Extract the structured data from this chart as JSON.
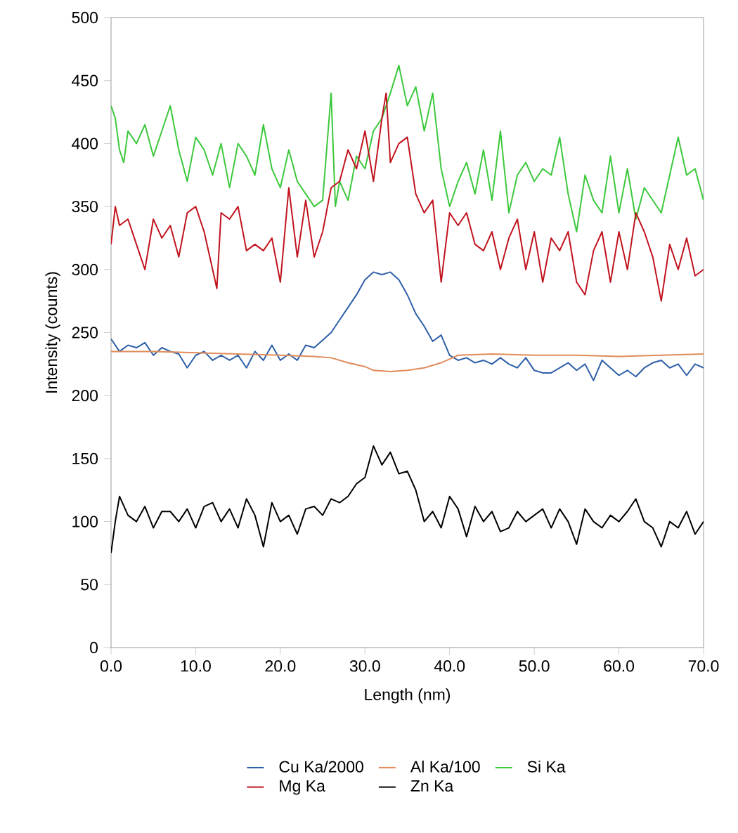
{
  "chart_data": {
    "type": "line",
    "xlabel": "Length (nm)",
    "ylabel": "Intensity (counts)",
    "xlim": [
      0,
      70
    ],
    "ylim": [
      0,
      500
    ],
    "xticks": [
      {
        "value": 0,
        "label": "0.0"
      },
      {
        "value": 10,
        "label": "10.0"
      },
      {
        "value": 20,
        "label": "20.0"
      },
      {
        "value": 30,
        "label": "30.0"
      },
      {
        "value": 40,
        "label": "40.0"
      },
      {
        "value": 50,
        "label": "50.0"
      },
      {
        "value": 60,
        "label": "60.0"
      },
      {
        "value": 70,
        "label": "70.0"
      }
    ],
    "yticks": [
      0,
      50,
      100,
      150,
      200,
      250,
      300,
      350,
      400,
      450,
      500
    ],
    "grid": false,
    "legend": "bottom",
    "marker": "none",
    "line_style": "solid",
    "series": [
      {
        "name": "Cu Ka/2000",
        "color": "#2e5fa8",
        "x": [
          0,
          1,
          2,
          3,
          4,
          5,
          6,
          7,
          8,
          9,
          10,
          11,
          12,
          13,
          14,
          15,
          16,
          17,
          18,
          19,
          20,
          21,
          22,
          23,
          24,
          25,
          26,
          27,
          28,
          29,
          30,
          31,
          32,
          33,
          34,
          35,
          36,
          37,
          38,
          39,
          40,
          41,
          42,
          43,
          44,
          45,
          46,
          47,
          48,
          49,
          50,
          51,
          52,
          53,
          54,
          55,
          56,
          57,
          58,
          59,
          60,
          61,
          62,
          63,
          64,
          65,
          66,
          67,
          68,
          69,
          70
        ],
        "values": [
          245,
          235,
          240,
          238,
          242,
          232,
          238,
          235,
          233,
          222,
          232,
          235,
          228,
          232,
          228,
          232,
          222,
          235,
          228,
          240,
          228,
          233,
          228,
          240,
          238,
          244,
          250,
          260,
          270,
          280,
          292,
          298,
          296,
          298,
          292,
          280,
          265,
          255,
          243,
          248,
          232,
          228,
          230,
          226,
          228,
          225,
          230,
          225,
          222,
          230,
          220,
          218,
          218,
          222,
          226,
          220,
          225,
          212,
          228,
          222,
          216,
          220,
          215,
          222,
          226,
          228,
          222,
          225,
          216,
          225,
          222
        ]
      },
      {
        "name": "Al Ka/100",
        "color": "#e08c5a",
        "x": [
          0,
          5,
          10,
          15,
          20,
          24,
          26,
          28,
          30,
          31,
          33,
          35,
          37,
          39,
          41,
          45,
          50,
          55,
          60,
          65,
          70
        ],
        "values": [
          235,
          235,
          234,
          233,
          232,
          231,
          230,
          226,
          223,
          220,
          219,
          220,
          222,
          226,
          232,
          233,
          232,
          232,
          231,
          232,
          233
        ]
      },
      {
        "name": "Si Ka",
        "color": "#3cc83c",
        "x": [
          0,
          0.5,
          1,
          1.5,
          2,
          3,
          4,
          5,
          6,
          7,
          8,
          9,
          10,
          11,
          12,
          13,
          14,
          15,
          16,
          17,
          18,
          19,
          20,
          21,
          22,
          23,
          24,
          25,
          26,
          26.5,
          27,
          28,
          29,
          30,
          31,
          32,
          33,
          34,
          35,
          36,
          37,
          38,
          39,
          40,
          41,
          42,
          43,
          44,
          45,
          46,
          47,
          48,
          49,
          50,
          51,
          52,
          53,
          54,
          55,
          56,
          57,
          58,
          59,
          60,
          61,
          62,
          63,
          64,
          65,
          66,
          67,
          68,
          69,
          70
        ],
        "values": [
          430,
          420,
          395,
          385,
          410,
          400,
          415,
          390,
          410,
          430,
          395,
          370,
          405,
          395,
          375,
          400,
          365,
          400,
          390,
          375,
          415,
          380,
          365,
          395,
          370,
          360,
          350,
          355,
          440,
          350,
          370,
          355,
          390,
          380,
          410,
          420,
          440,
          462,
          430,
          445,
          410,
          440,
          380,
          350,
          370,
          385,
          360,
          395,
          355,
          410,
          345,
          375,
          385,
          370,
          380,
          375,
          405,
          360,
          330,
          375,
          355,
          345,
          390,
          345,
          380,
          340,
          365,
          355,
          345,
          375,
          405,
          375,
          380,
          355
        ]
      },
      {
        "name": "Mg Ka",
        "color": "#c0141e",
        "x": [
          0,
          0.5,
          1,
          2,
          3,
          4,
          5,
          6,
          7,
          8,
          9,
          10,
          11,
          12,
          12.5,
          13,
          14,
          15,
          16,
          17,
          18,
          19,
          20,
          21,
          22,
          23,
          24,
          25,
          26,
          27,
          28,
          29,
          30,
          31,
          32,
          32.5,
          33,
          34,
          35,
          36,
          37,
          38,
          39,
          40,
          41,
          42,
          43,
          44,
          45,
          46,
          47,
          48,
          49,
          50,
          51,
          52,
          53,
          54,
          55,
          56,
          57,
          58,
          59,
          60,
          61,
          62,
          63,
          64,
          65,
          66,
          67,
          68,
          69,
          70
        ],
        "values": [
          320,
          350,
          335,
          340,
          320,
          300,
          340,
          325,
          335,
          310,
          345,
          350,
          330,
          300,
          285,
          345,
          340,
          350,
          315,
          320,
          315,
          325,
          290,
          365,
          310,
          355,
          310,
          330,
          365,
          370,
          395,
          380,
          410,
          370,
          420,
          440,
          385,
          400,
          405,
          360,
          345,
          355,
          290,
          345,
          335,
          345,
          320,
          315,
          330,
          300,
          325,
          340,
          300,
          330,
          290,
          325,
          315,
          330,
          290,
          280,
          315,
          330,
          290,
          330,
          300,
          345,
          330,
          310,
          275,
          320,
          300,
          325,
          295,
          300
        ]
      },
      {
        "name": "Zn Ka",
        "color": "#000000",
        "x": [
          0,
          0.5,
          1,
          2,
          3,
          4,
          5,
          6,
          7,
          8,
          9,
          10,
          11,
          12,
          13,
          14,
          15,
          16,
          17,
          18,
          19,
          20,
          21,
          22,
          23,
          24,
          25,
          26,
          27,
          28,
          29,
          30,
          31,
          32,
          33,
          34,
          35,
          36,
          37,
          38,
          39,
          40,
          41,
          42,
          43,
          44,
          45,
          46,
          47,
          48,
          49,
          50,
          51,
          52,
          53,
          54,
          55,
          56,
          57,
          58,
          59,
          60,
          61,
          62,
          63,
          64,
          65,
          66,
          67,
          68,
          69,
          70
        ],
        "values": [
          75,
          100,
          120,
          105,
          100,
          112,
          95,
          108,
          108,
          100,
          110,
          95,
          112,
          115,
          100,
          110,
          95,
          118,
          105,
          80,
          115,
          100,
          105,
          90,
          110,
          112,
          105,
          118,
          115,
          120,
          130,
          135,
          160,
          145,
          155,
          138,
          140,
          125,
          100,
          108,
          95,
          120,
          110,
          88,
          112,
          100,
          108,
          92,
          95,
          108,
          100,
          105,
          110,
          95,
          110,
          100,
          82,
          110,
          100,
          95,
          105,
          100,
          108,
          118,
          100,
          95,
          80,
          100,
          95,
          108,
          90,
          100
        ]
      }
    ]
  }
}
